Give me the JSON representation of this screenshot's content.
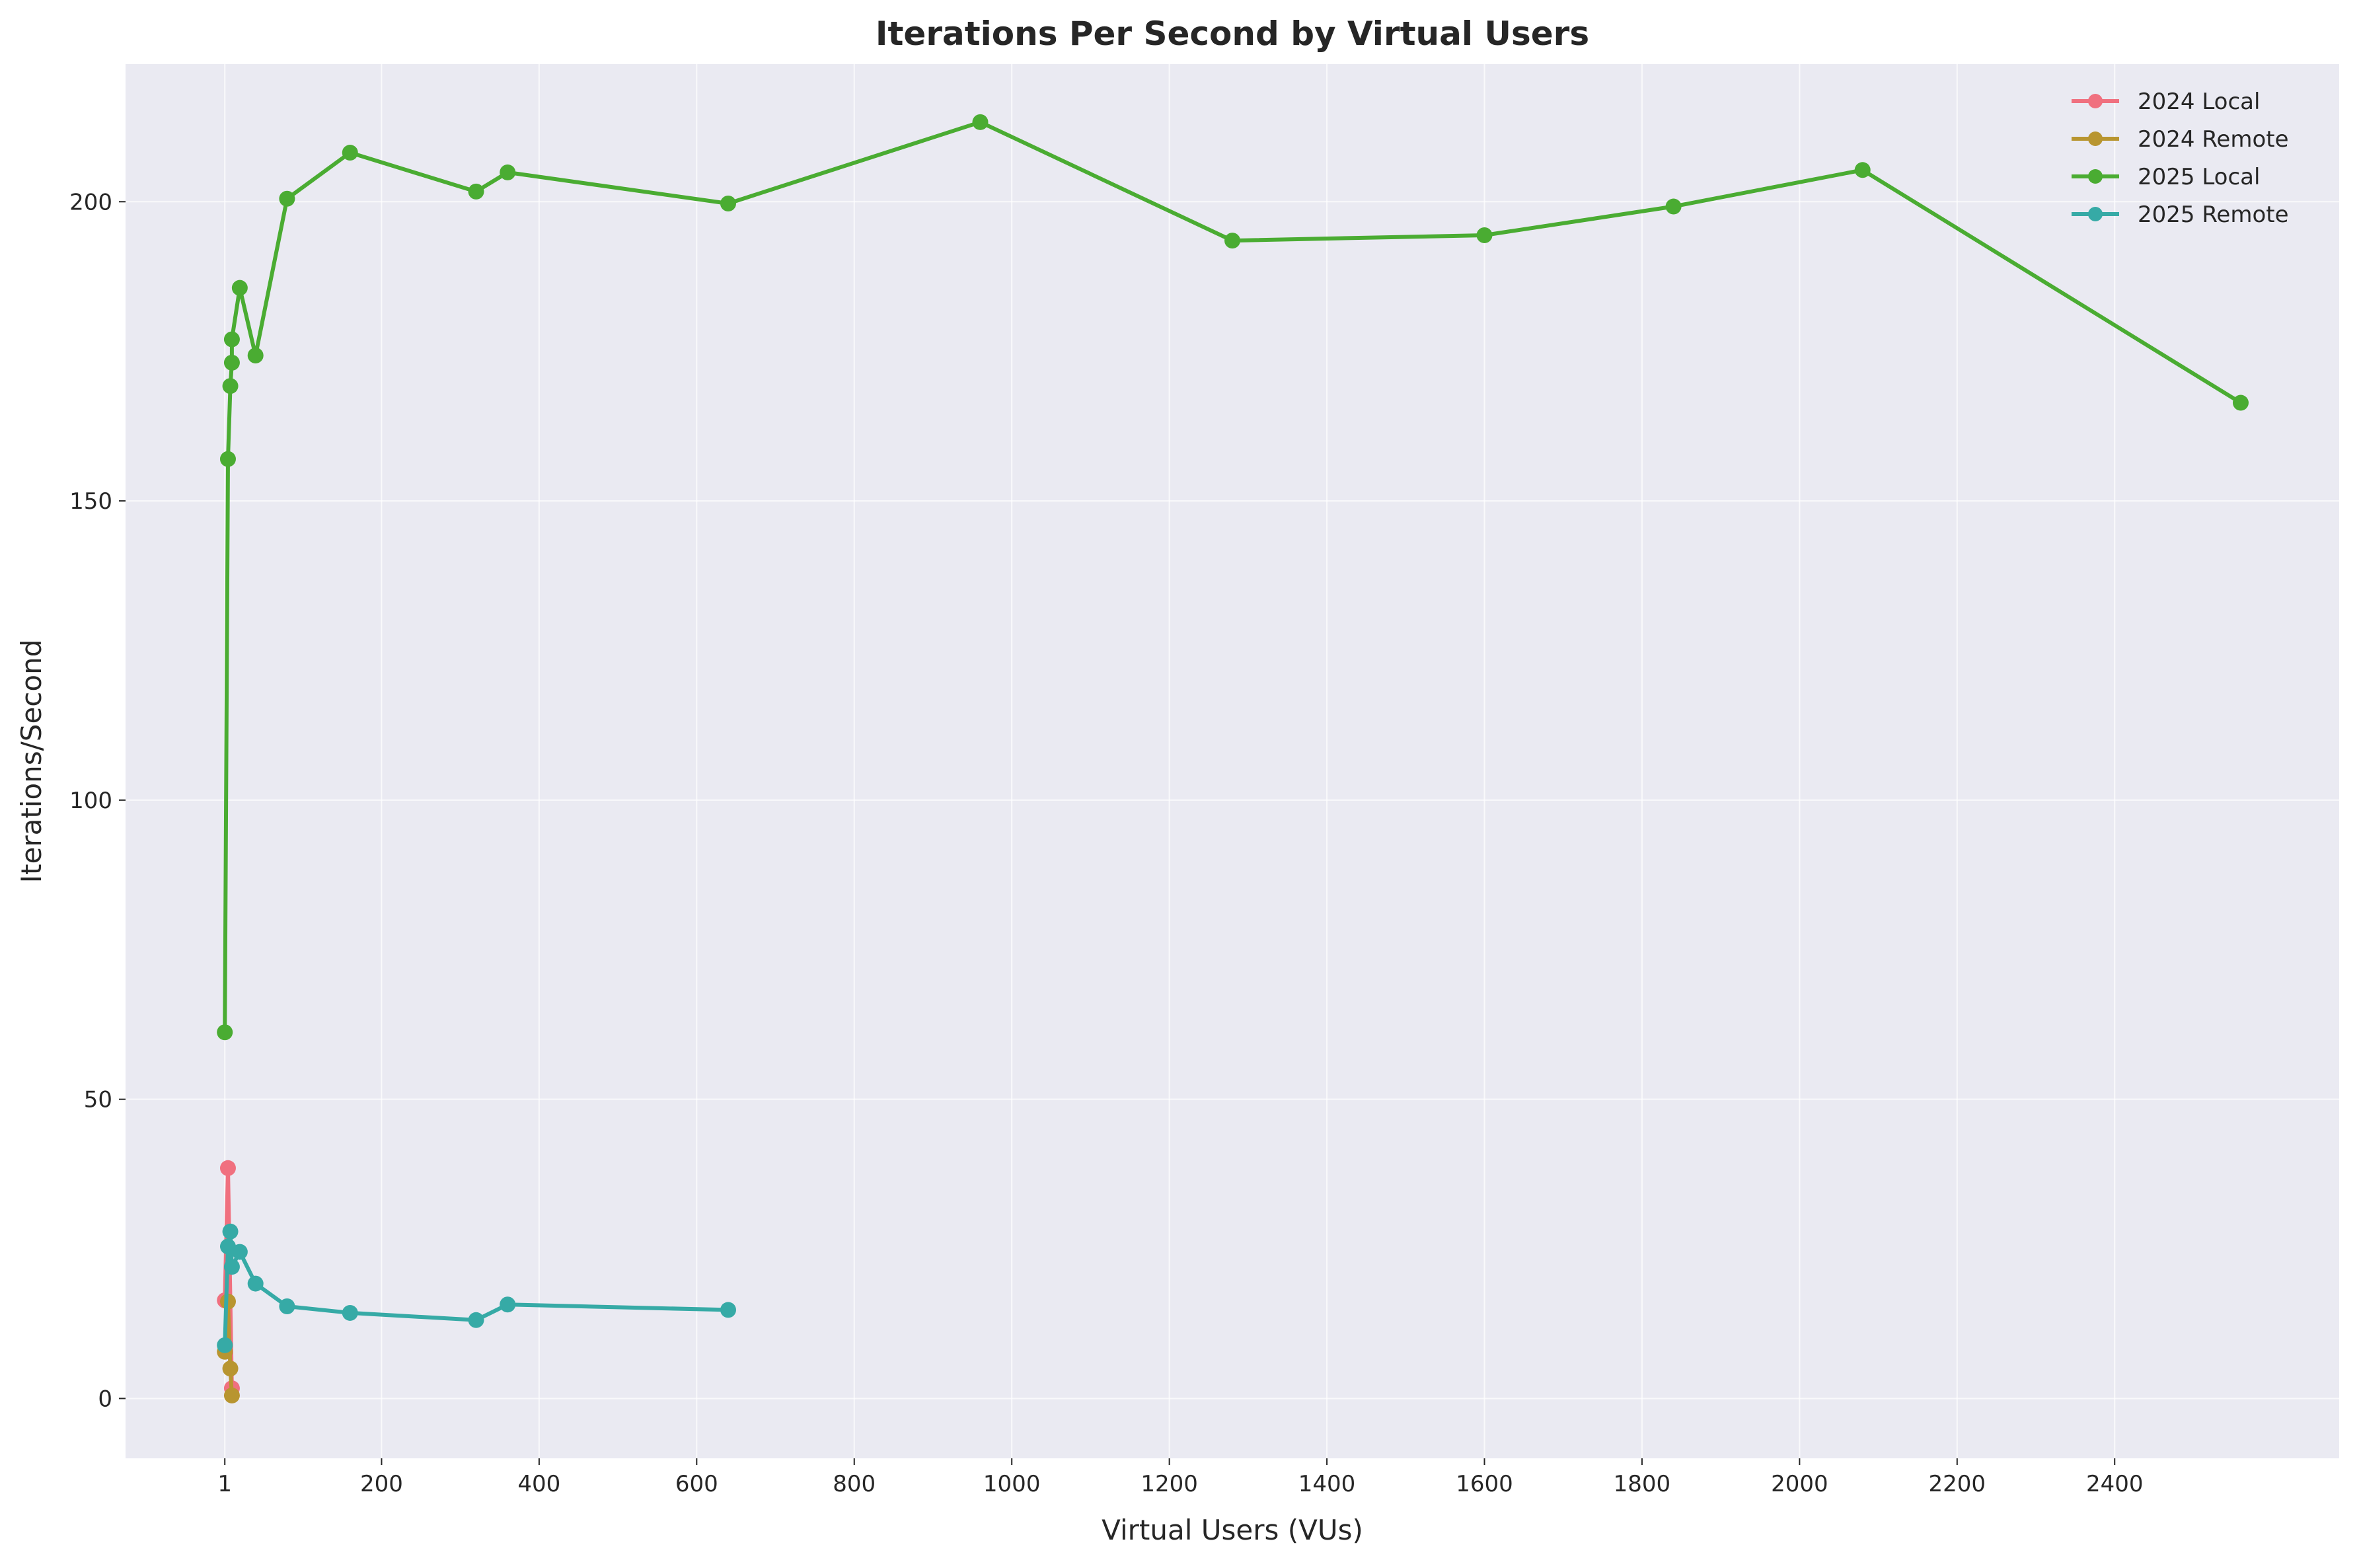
{
  "chart_data": {
    "type": "line",
    "title": "Iterations Per Second by Virtual Users",
    "xlabel": "Virtual Users (VUs)",
    "ylabel": "Iterations/Second",
    "xlim": [
      -125,
      2685
    ],
    "ylim": [
      -10,
      223
    ],
    "x_ticks": [
      1,
      200,
      400,
      600,
      800,
      1000,
      1200,
      1400,
      1600,
      1800,
      2000,
      2200,
      2400
    ],
    "x_tick_labels": [
      "1",
      "200",
      "400",
      "600",
      "800",
      "1000",
      "1200",
      "1400",
      "1600",
      "1800",
      "2000",
      "2200",
      "2400"
    ],
    "y_ticks": [
      0,
      50,
      100,
      150,
      200
    ],
    "y_tick_labels": [
      "0",
      "50",
      "100",
      "150",
      "200"
    ],
    "grid": true,
    "legend_position": "top-right",
    "colors": {
      "background": "#eaeaf2",
      "grid": "#ffffff",
      "text": "#262626"
    },
    "series": [
      {
        "name": "2024 Local",
        "color": "#f0707f",
        "x": [
          1,
          5,
          10
        ],
        "y": [
          16.4,
          38.5,
          1.7
        ]
      },
      {
        "name": "2024 Remote",
        "color": "#b89530",
        "x": [
          1,
          5,
          8,
          10
        ],
        "y": [
          7.8,
          16.2,
          5.0,
          0.5
        ]
      },
      {
        "name": "2025 Local",
        "color": "#4aac32",
        "x": [
          1,
          5,
          8,
          10,
          10,
          20,
          40,
          80,
          160,
          320,
          360,
          640,
          960,
          1280,
          1600,
          1840,
          2080,
          2560
        ],
        "y": [
          61.2,
          157.0,
          169.2,
          173.1,
          177.0,
          185.6,
          174.3,
          200.5,
          208.2,
          201.7,
          204.9,
          199.7,
          213.3,
          193.5,
          194.4,
          199.2,
          205.3,
          166.4
        ]
      },
      {
        "name": "2025 Remote",
        "color": "#36aaa6",
        "x": [
          1,
          5,
          8,
          10,
          20,
          40,
          80,
          160,
          320,
          360,
          640
        ],
        "y": [
          8.9,
          25.4,
          27.9,
          22.0,
          24.5,
          19.2,
          15.4,
          14.3,
          13.1,
          15.7,
          14.8
        ]
      }
    ]
  }
}
